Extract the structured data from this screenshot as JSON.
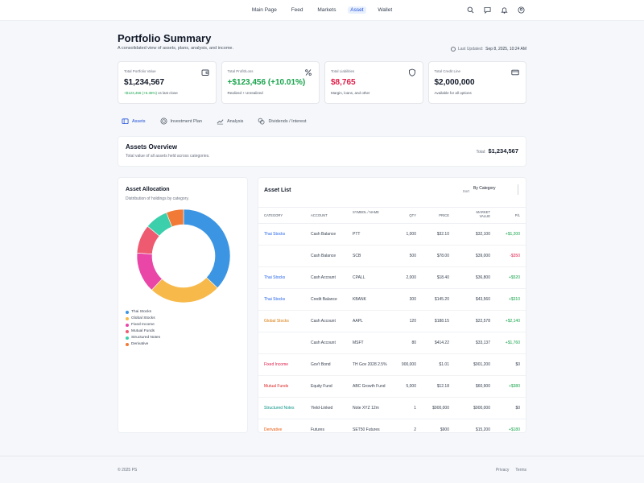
{
  "nav": {
    "links": [
      "Main Page",
      "Feed",
      "Markets",
      "Asset",
      "Wallet"
    ],
    "active": "Asset"
  },
  "header": {
    "title": "Portfolio Summary",
    "subtitle": "A consolidated view of assets, plans, analysis, and income.",
    "last_updated_label": "Last Updated:",
    "last_updated_value": "Sep 8, 2025, 10:24 AM"
  },
  "cards": [
    {
      "label": "Total Portfolio Value",
      "value": "$1,234,567",
      "note_change": "+$123,456 (+5.36%)",
      "note_rest": " vs last close",
      "icon": "wallet-icon"
    },
    {
      "label": "Total Profit/Loss",
      "value": "+$123,456 (+10.01%)",
      "note": "Realized + Unrealized",
      "icon": "percent-icon"
    },
    {
      "label": "Total Liabilities",
      "value": "$8,765",
      "note": "Margin, loans, and other",
      "icon": "shield-icon"
    },
    {
      "label": "Total Credit Line",
      "value": "$2,000,000",
      "note": "Available for all options",
      "icon": "card-icon"
    }
  ],
  "tabs": [
    {
      "label": "Assets",
      "icon": "wallet-icon"
    },
    {
      "label": "Investment Plan",
      "icon": "target-icon"
    },
    {
      "label": "Analysis",
      "icon": "chart-icon"
    },
    {
      "label": "Dividends / Interest",
      "icon": "coins-icon"
    }
  ],
  "overview": {
    "title": "Assets Overview",
    "subtitle": "Total value of all assets held across categories.",
    "total_label": "Total:",
    "total_value": "$1,234,567"
  },
  "allocation": {
    "title": "Asset Allocation",
    "subtitle": "Distribution of holdings by category.",
    "legend": [
      {
        "label": "Thai Stocks",
        "color": "#3b95e3"
      },
      {
        "label": "Global Stocks",
        "color": "#f7b94a"
      },
      {
        "label": "Fixed Income",
        "color": "#e946a8"
      },
      {
        "label": "Mutual Funds",
        "color": "#ee5a6f"
      },
      {
        "label": "Structured Notes",
        "color": "#3ccfab"
      },
      {
        "label": "Derivative",
        "color": "#f07a36"
      }
    ],
    "slices": [
      {
        "label": "Thai Stocks",
        "value": 37,
        "color": "#3b95e3"
      },
      {
        "label": "Global Stocks",
        "value": 25,
        "color": "#f7b94a"
      },
      {
        "label": "Fixed Income",
        "value": 14,
        "color": "#e946a8"
      },
      {
        "label": "Mutual Funds",
        "value": 10,
        "color": "#ee5a6f"
      },
      {
        "label": "Structured Notes",
        "value": 8,
        "color": "#3ccfab"
      },
      {
        "label": "Derivative",
        "value": 6,
        "color": "#f07a36"
      }
    ]
  },
  "asset_list": {
    "title": "Asset List",
    "sort_label": "Sort",
    "sort_value": "By Category",
    "columns": [
      "Category",
      "Account",
      "Symbol / Name",
      "Qty",
      "Price",
      "Market Value",
      "P/L"
    ],
    "rows": [
      {
        "category": "Thai Stocks",
        "cat_color": "#2563eb",
        "account": "Cash Balance",
        "symbol": "PTT",
        "qty": "1,000",
        "price": "$32.10",
        "mv": "$32,100",
        "pl": "+$1,200",
        "pl_dir": "up"
      },
      {
        "category": "",
        "cat_color": "#2563eb",
        "account": "Cash Balance",
        "symbol": "SCB",
        "qty": "500",
        "price": "$78.00",
        "mv": "$39,000",
        "pl": "-$350",
        "pl_dir": "down"
      },
      {
        "category": "Thai Stocks",
        "cat_color": "#2563eb",
        "account": "Cash Account",
        "symbol": "CPALL",
        "qty": "2,000",
        "price": "$18.40",
        "mv": "$36,800",
        "pl": "+$520",
        "pl_dir": "up"
      },
      {
        "category": "Thai Stocks",
        "cat_color": "#2563eb",
        "account": "Credit Balance",
        "symbol": "KBANK",
        "qty": "300",
        "price": "$145.20",
        "mv": "$43,560",
        "pl": "+$310",
        "pl_dir": "up"
      },
      {
        "category": "Global Stocks",
        "cat_color": "#d97706",
        "account": "Cash Account",
        "symbol": "AAPL",
        "qty": "120",
        "price": "$188.15",
        "mv": "$22,578",
        "pl": "+$2,140",
        "pl_dir": "up"
      },
      {
        "category": "",
        "cat_color": "#d97706",
        "account": "Cash Account",
        "symbol": "MSFT",
        "qty": "80",
        "price": "$414.22",
        "mv": "$33,137",
        "pl": "+$1,760",
        "pl_dir": "up"
      },
      {
        "category": "Fixed Income",
        "cat_color": "#e11d48",
        "account": "Gov't Bond",
        "symbol": "TH Gov 2028 2.5%",
        "qty": "900,000",
        "price": "$1.01",
        "mv": "$901,200",
        "pl": "$0",
        "pl_dir": "flat"
      },
      {
        "category": "Mutual Funds",
        "cat_color": "#dc2626",
        "account": "Equity Fund",
        "symbol": "ABC Growth Fund",
        "qty": "5,000",
        "price": "$12.18",
        "mv": "$60,900",
        "pl": "+$380",
        "pl_dir": "up"
      },
      {
        "category": "Structured Notes",
        "cat_color": "#0d9488",
        "account": "Yield-Linked",
        "symbol": "Note XYZ 12m",
        "qty": "1",
        "price": "$900,000",
        "mv": "$900,000",
        "pl": "$0",
        "pl_dir": "flat"
      },
      {
        "category": "Derivative",
        "cat_color": "#ea580c",
        "account": "Futures",
        "symbol": "SET50 Futures",
        "qty": "2",
        "price": "$900",
        "mv": "$15,200",
        "pl": "+$180",
        "pl_dir": "up"
      }
    ]
  },
  "footer": {
    "copyright": "© 2025 PS",
    "links": [
      "Privacy",
      "Terms"
    ]
  }
}
